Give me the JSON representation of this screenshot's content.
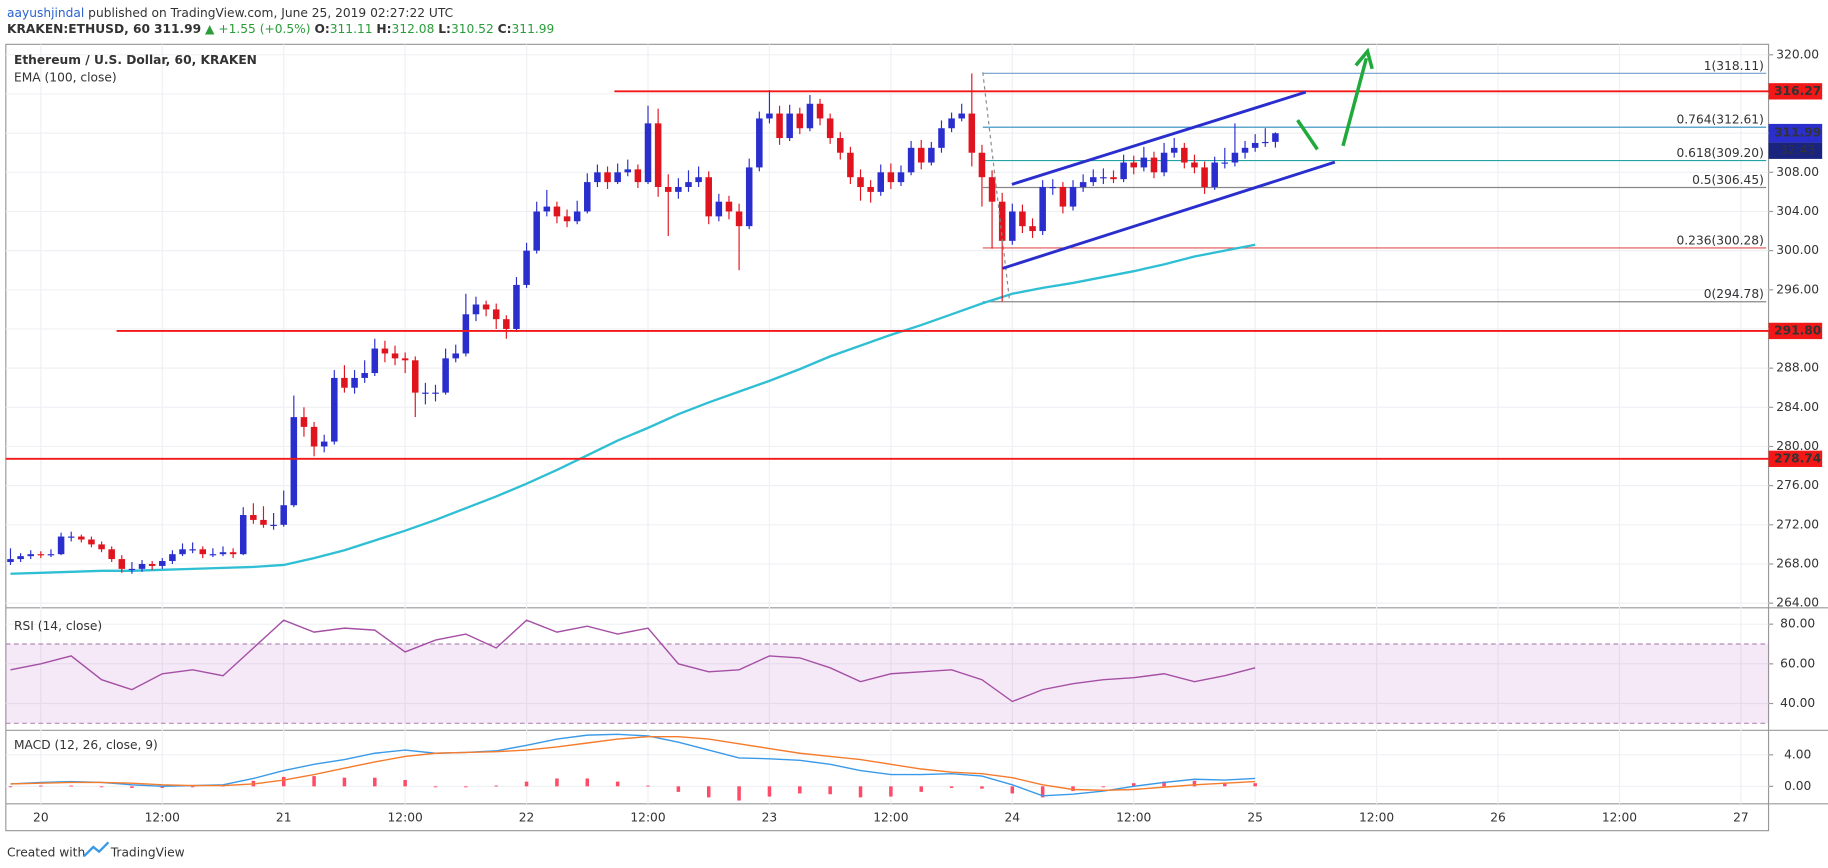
{
  "header": {
    "author": "aayushjindal",
    "published": "published on TradingView.com, June 25, 2019 02:27:22 UTC",
    "symbol": "KRAKEN:ETHUSD, 60",
    "price": "311.99",
    "change": "▲ +1.55 (+0.5%)",
    "ohlc": [
      {
        "label": "O:",
        "value": "311.11"
      },
      {
        "label": "H:",
        "value": "312.08"
      },
      {
        "label": "L:",
        "value": "310.52"
      },
      {
        "label": "C:",
        "value": "311.99"
      }
    ]
  },
  "footer": {
    "created": "Created with",
    "brand": "TradingView"
  },
  "chart_data": {
    "type": "candlestick",
    "title": "Ethereum / U.S. Dollar, 60, KRAKEN",
    "up_color": "#2a2ecd",
    "down_color": "#e0141e",
    "grid": true,
    "xticks": [
      "20",
      "12:00",
      "21",
      "12:00",
      "22",
      "12:00",
      "23",
      "12:00",
      "24",
      "12:00",
      "25",
      "12:00",
      "26",
      "12:00",
      "27"
    ],
    "ylim": [
      263.64,
      321.07
    ],
    "yticks": [
      {
        "value": 264,
        "label": "264.00"
      },
      {
        "value": 268,
        "label": "268.00"
      },
      {
        "value": 272,
        "label": "272.00"
      },
      {
        "value": 276,
        "label": "276.00"
      },
      {
        "value": 280,
        "label": "280.00"
      },
      {
        "value": 284,
        "label": "284.00"
      },
      {
        "value": 288,
        "label": "288.00"
      },
      {
        "value": 292,
        "label": "292.00"
      },
      {
        "value": 296,
        "label": "296.00"
      },
      {
        "value": 300,
        "label": "300.00"
      },
      {
        "value": 304,
        "label": "304.00"
      },
      {
        "value": 308,
        "label": "308.00"
      },
      {
        "value": 312,
        "label": "312.00"
      },
      {
        "value": 316,
        "label": "316.00"
      },
      {
        "value": 320,
        "label": "320.00"
      }
    ],
    "candles": [
      [
        268.2,
        269.6,
        267.9,
        268.5
      ],
      [
        268.5,
        269.1,
        268.2,
        268.8
      ],
      [
        268.8,
        269.4,
        268.5,
        269.0
      ],
      [
        269.0,
        269.3,
        268.6,
        268.9
      ],
      [
        268.9,
        269.5,
        268.7,
        269.0
      ],
      [
        269.0,
        271.2,
        268.9,
        270.8
      ],
      [
        270.8,
        271.3,
        270.3,
        270.8
      ],
      [
        270.8,
        271.0,
        270.2,
        270.5
      ],
      [
        270.5,
        270.8,
        269.7,
        270.0
      ],
      [
        270.0,
        270.3,
        269.2,
        269.5
      ],
      [
        269.5,
        269.8,
        268.2,
        268.5
      ],
      [
        268.5,
        268.9,
        267.1,
        267.5
      ],
      [
        267.5,
        268.2,
        267.0,
        267.5
      ],
      [
        267.5,
        268.4,
        267.2,
        268.0
      ],
      [
        268.0,
        268.3,
        267.4,
        267.8
      ],
      [
        267.8,
        268.6,
        267.5,
        268.3
      ],
      [
        268.3,
        269.4,
        268.0,
        269.0
      ],
      [
        269.0,
        270.1,
        268.8,
        269.5
      ],
      [
        269.5,
        270.2,
        269.1,
        269.5
      ],
      [
        269.5,
        269.8,
        268.6,
        269.0
      ],
      [
        269.0,
        269.6,
        268.7,
        269.0
      ],
      [
        269.0,
        269.8,
        268.8,
        269.2
      ],
      [
        269.2,
        269.6,
        268.6,
        269.0
      ],
      [
        269.0,
        273.8,
        268.9,
        273.0
      ],
      [
        273.0,
        274.2,
        272.1,
        272.5
      ],
      [
        272.5,
        273.9,
        271.7,
        272.0
      ],
      [
        272.0,
        273.2,
        271.5,
        272.0
      ],
      [
        272.0,
        275.5,
        271.8,
        274.0
      ],
      [
        274.0,
        285.2,
        273.8,
        283.0
      ],
      [
        283.0,
        284.0,
        281.0,
        282.0
      ],
      [
        282.0,
        282.5,
        279.0,
        280.0
      ],
      [
        280.0,
        281.2,
        279.4,
        280.5
      ],
      [
        280.5,
        287.8,
        280.2,
        287.0
      ],
      [
        287.0,
        288.3,
        285.5,
        286.0
      ],
      [
        286.0,
        287.8,
        285.4,
        287.0
      ],
      [
        287.0,
        288.8,
        286.5,
        287.5
      ],
      [
        287.5,
        291.0,
        287.2,
        290.0
      ],
      [
        290.0,
        290.8,
        288.6,
        289.5
      ],
      [
        289.5,
        290.3,
        288.3,
        289.0
      ],
      [
        289.0,
        289.6,
        287.5,
        288.8
      ],
      [
        288.8,
        289.2,
        283.0,
        285.5
      ],
      [
        285.5,
        286.5,
        284.3,
        285.5
      ],
      [
        285.5,
        286.3,
        284.6,
        285.5
      ],
      [
        285.5,
        290.0,
        285.3,
        289.0
      ],
      [
        289.0,
        290.4,
        288.6,
        289.5
      ],
      [
        289.5,
        295.6,
        289.2,
        293.5
      ],
      [
        293.5,
        295.3,
        292.8,
        294.5
      ],
      [
        294.5,
        294.9,
        293.3,
        294.0
      ],
      [
        294.0,
        294.6,
        292.0,
        293.0
      ],
      [
        293.0,
        293.4,
        291.0,
        292.0
      ],
      [
        292.0,
        297.3,
        291.7,
        296.5
      ],
      [
        296.5,
        300.8,
        296.2,
        300.0
      ],
      [
        300.0,
        305.0,
        299.7,
        304.0
      ],
      [
        304.0,
        306.2,
        303.5,
        304.5
      ],
      [
        304.5,
        305.0,
        302.8,
        303.5
      ],
      [
        303.5,
        304.2,
        302.4,
        303.0
      ],
      [
        303.0,
        305.1,
        302.7,
        304.0
      ],
      [
        304.0,
        307.9,
        303.8,
        307.0
      ],
      [
        307.0,
        308.8,
        306.5,
        308.0
      ],
      [
        308.0,
        308.6,
        306.3,
        307.0
      ],
      [
        307.0,
        308.9,
        306.8,
        308.0
      ],
      [
        308.0,
        309.3,
        307.6,
        308.3
      ],
      [
        308.3,
        308.8,
        306.4,
        307.0
      ],
      [
        307.0,
        314.8,
        306.8,
        313.0
      ],
      [
        313.0,
        314.5,
        305.5,
        306.5
      ],
      [
        306.5,
        307.8,
        301.5,
        306.0
      ],
      [
        306.0,
        307.4,
        305.3,
        306.5
      ],
      [
        306.5,
        308.2,
        306.0,
        307.0
      ],
      [
        307.0,
        308.6,
        306.5,
        307.5
      ],
      [
        307.5,
        308.1,
        302.7,
        303.5
      ],
      [
        303.5,
        305.8,
        303.0,
        305.0
      ],
      [
        305.0,
        305.6,
        303.2,
        304.0
      ],
      [
        304.0,
        304.8,
        298.0,
        302.5
      ],
      [
        302.5,
        309.4,
        302.2,
        308.5
      ],
      [
        308.5,
        314.2,
        308.1,
        313.5
      ],
      [
        313.5,
        316.4,
        313.0,
        314.0
      ],
      [
        314.0,
        314.8,
        310.8,
        311.5
      ],
      [
        311.5,
        314.9,
        311.2,
        314.0
      ],
      [
        314.0,
        314.6,
        311.9,
        312.5
      ],
      [
        312.5,
        315.9,
        312.2,
        315.0
      ],
      [
        315.0,
        315.5,
        312.8,
        313.5
      ],
      [
        313.5,
        314.0,
        310.9,
        311.5
      ],
      [
        311.5,
        312.1,
        309.3,
        310.0
      ],
      [
        310.0,
        310.6,
        306.8,
        307.5
      ],
      [
        307.5,
        308.3,
        305.1,
        306.5
      ],
      [
        306.5,
        307.2,
        304.9,
        306.0
      ],
      [
        306.0,
        308.8,
        305.6,
        308.0
      ],
      [
        308.0,
        308.9,
        306.3,
        307.0
      ],
      [
        307.0,
        308.7,
        306.6,
        308.0
      ],
      [
        308.0,
        311.2,
        307.7,
        310.5
      ],
      [
        310.5,
        311.3,
        308.3,
        309.0
      ],
      [
        309.0,
        311.1,
        308.7,
        310.5
      ],
      [
        310.5,
        313.3,
        310.0,
        312.5
      ],
      [
        312.5,
        314.1,
        312.1,
        313.5
      ],
      [
        313.5,
        315.0,
        313.2,
        314.0
      ],
      [
        314.0,
        318.1,
        308.6,
        310.0
      ],
      [
        310.0,
        310.8,
        304.5,
        307.5
      ],
      [
        307.5,
        308.2,
        300.2,
        305.0
      ],
      [
        305.0,
        305.9,
        294.8,
        301.0
      ],
      [
        301.0,
        304.8,
        300.6,
        304.0
      ],
      [
        304.0,
        304.7,
        301.8,
        302.5
      ],
      [
        302.5,
        303.3,
        301.3,
        302.0
      ],
      [
        302.0,
        307.2,
        301.6,
        306.5
      ],
      [
        306.5,
        307.3,
        305.7,
        306.5
      ],
      [
        306.5,
        307.0,
        303.8,
        304.5
      ],
      [
        304.5,
        307.2,
        304.1,
        306.5
      ],
      [
        306.5,
        307.8,
        306.0,
        307.0
      ],
      [
        307.0,
        308.3,
        306.6,
        307.5
      ],
      [
        307.5,
        308.4,
        306.8,
        307.5
      ],
      [
        307.5,
        308.2,
        306.9,
        307.3
      ],
      [
        307.3,
        309.8,
        307.0,
        309.0
      ],
      [
        309.0,
        309.7,
        307.8,
        308.5
      ],
      [
        308.5,
        310.6,
        308.1,
        309.5
      ],
      [
        309.5,
        310.1,
        307.4,
        308.0
      ],
      [
        308.0,
        311.0,
        307.6,
        310.0
      ],
      [
        310.0,
        311.5,
        309.5,
        310.5
      ],
      [
        310.5,
        311.0,
        308.4,
        309.0
      ],
      [
        309.0,
        309.8,
        307.9,
        308.5
      ],
      [
        308.5,
        309.1,
        305.8,
        306.5
      ],
      [
        306.5,
        309.6,
        306.2,
        309.0
      ],
      [
        309.0,
        310.5,
        308.4,
        309.0
      ],
      [
        309.0,
        313.0,
        308.6,
        310.0
      ],
      [
        310.0,
        311.2,
        309.4,
        310.5
      ],
      [
        310.5,
        311.9,
        310.1,
        311.0
      ],
      [
        311.0,
        312.5,
        310.6,
        311.1
      ],
      [
        311.11,
        312.08,
        310.52,
        311.99
      ]
    ],
    "ema": {
      "name": "EMA (100, close)",
      "color": "#2fbfd4",
      "values": [
        267.0,
        267.1,
        267.2,
        267.3,
        267.3,
        267.4,
        267.5,
        267.6,
        267.7,
        267.9,
        268.6,
        269.4,
        270.4,
        271.4,
        272.5,
        273.7,
        274.9,
        276.2,
        277.6,
        279.1,
        280.6,
        281.9,
        283.3,
        284.5,
        285.6,
        286.7,
        287.9,
        289.2,
        290.3,
        291.4,
        292.4,
        293.5,
        294.6,
        295.6,
        296.2,
        296.7,
        297.3,
        297.9,
        298.6,
        299.4,
        300.0,
        300.6
      ]
    },
    "levels": [
      {
        "value": 316.27,
        "label": "316.27"
      },
      {
        "value": 291.8,
        "label": "291.80"
      },
      {
        "value": 278.74,
        "label": "278.74"
      }
    ],
    "level_color": "#f21818",
    "fib": [
      {
        "value": 318.11,
        "label": "1(318.11)",
        "color": "#6f9fd0"
      },
      {
        "value": 312.61,
        "label": "0.764(312.61)",
        "color": "#2b8cbe"
      },
      {
        "value": 309.2,
        "label": "0.618(309.20)",
        "color": "#22a3a3"
      },
      {
        "value": 306.45,
        "label": "0.5(306.45)",
        "color": "#888888"
      },
      {
        "value": 300.28,
        "label": "0.236(300.28)",
        "color": "#e05050"
      },
      {
        "value": 294.78,
        "label": "0(294.78)",
        "color": "#888888"
      }
    ],
    "last_price": 311.99,
    "last_color": "#2a2ecd",
    "countdown": "32:43",
    "rsi": {
      "title": "RSI (14, close)",
      "color": "#a54fa5",
      "band": [
        30,
        70
      ],
      "ylim": [
        27.06,
        87.65
      ],
      "yticks": [
        {
          "value": 40,
          "label": "40.00"
        },
        {
          "value": 60,
          "label": "60.00"
        },
        {
          "value": 80,
          "label": "80.00"
        }
      ],
      "values": [
        57,
        60,
        64,
        52,
        47,
        55,
        57,
        54,
        68,
        82,
        76,
        78,
        77,
        66,
        72,
        75,
        68,
        82,
        76,
        79,
        75,
        78,
        60,
        56,
        57,
        64,
        63,
        58,
        51,
        55,
        56,
        57,
        52,
        41,
        47,
        50,
        52,
        53,
        55,
        51,
        54,
        58
      ]
    },
    "macd": {
      "title": "MACD (12, 26, close, 9)",
      "ylim": [
        -2.22,
        6.96
      ],
      "yticks": [
        {
          "value": 0,
          "label": "0.00"
        },
        {
          "value": 4,
          "label": "4.00"
        }
      ],
      "macd": {
        "color": "#3a9ae8",
        "values": [
          0.3,
          0.5,
          0.6,
          0.5,
          0.2,
          0.0,
          0.1,
          0.2,
          1.0,
          2.0,
          2.8,
          3.4,
          4.2,
          4.6,
          4.2,
          4.3,
          4.5,
          5.2,
          6.0,
          6.5,
          6.6,
          6.4,
          5.6,
          4.6,
          3.6,
          3.5,
          3.3,
          2.8,
          2.0,
          1.5,
          1.5,
          1.6,
          1.3,
          0.2,
          -1.2,
          -1.0,
          -0.6,
          0.0,
          0.5,
          0.9,
          0.8,
          1.0
        ]
      },
      "signal": {
        "color": "#f57c2c",
        "values": [
          0.3,
          0.4,
          0.5,
          0.5,
          0.4,
          0.2,
          0.1,
          0.1,
          0.3,
          0.8,
          1.5,
          2.3,
          3.1,
          3.8,
          4.2,
          4.3,
          4.4,
          4.6,
          5.0,
          5.5,
          6.0,
          6.3,
          6.3,
          6.0,
          5.4,
          4.8,
          4.2,
          3.8,
          3.4,
          2.8,
          2.2,
          1.8,
          1.6,
          1.1,
          0.2,
          -0.4,
          -0.5,
          -0.4,
          -0.1,
          0.2,
          0.4,
          0.6
        ]
      },
      "histogram": {
        "color": "#ff4a68",
        "values": [
          0,
          0.1,
          0.1,
          0,
          -0.2,
          -0.2,
          0,
          0.1,
          0.7,
          1.2,
          1.3,
          1.1,
          1.1,
          0.8,
          0,
          0,
          0.1,
          0.6,
          1.0,
          1.0,
          0.6,
          0.1,
          -0.7,
          -1.4,
          -1.8,
          -1.3,
          -0.9,
          -1.0,
          -1.4,
          -1.3,
          -0.7,
          -0.2,
          -0.3,
          -0.9,
          -1.4,
          -0.6,
          -0.1,
          0.4,
          0.6,
          0.7,
          0.4,
          0.4
        ]
      }
    }
  }
}
